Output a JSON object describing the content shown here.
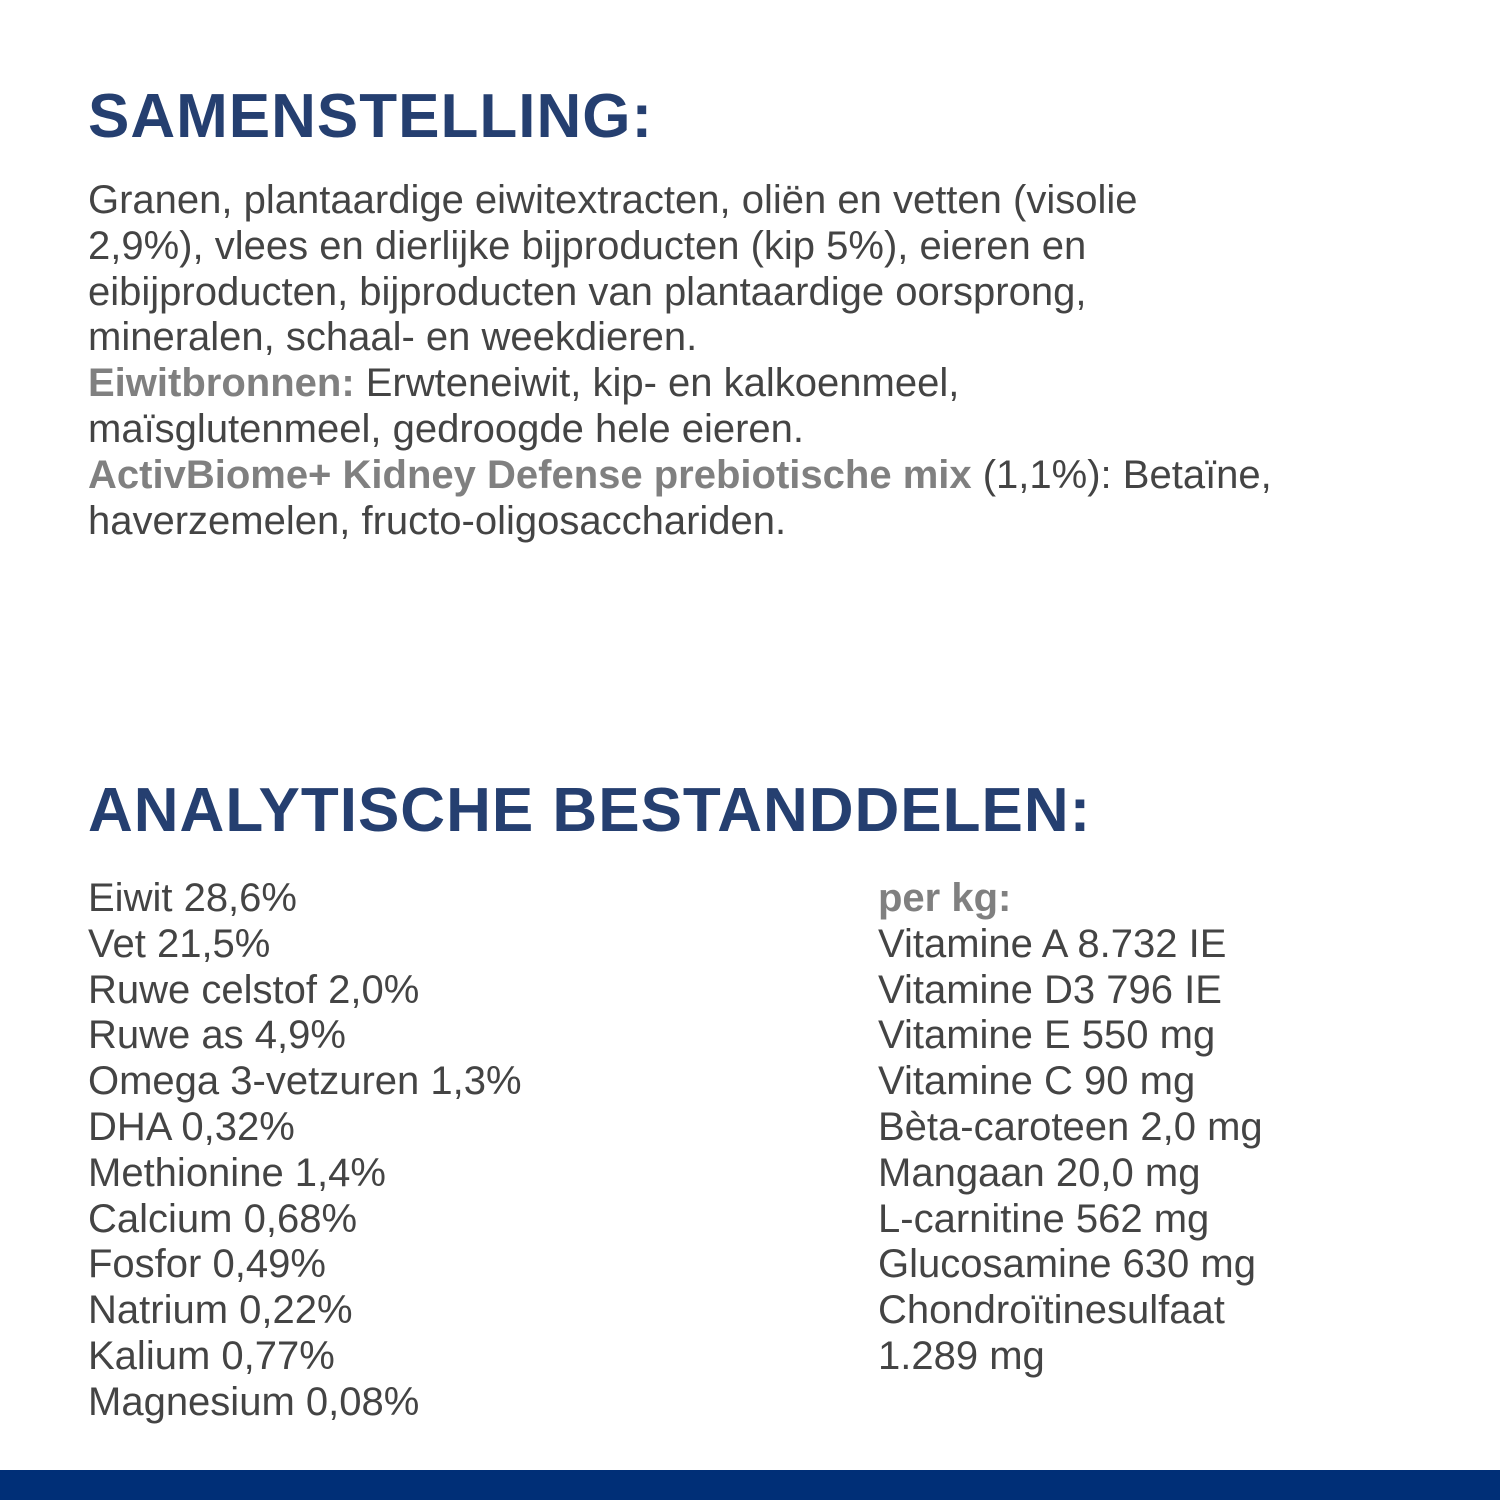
{
  "composition": {
    "heading": "SAMENSTELLING:",
    "lines": [
      "Granen, plantaardige eiwitextracten, oliën en vetten (visolie",
      "2,9%), vlees en dierlijke bijproducten (kip 5%), eieren en",
      "eibijproducten, bijproducten van plantaardige oorsprong,",
      "mineralen, schaal- en weekdieren."
    ],
    "protein_label": "Eiwitbronnen:",
    "protein_line1": " Erwteneiwit, kip- en kalkoenmeel,",
    "protein_line2": "maïsglutenmeel, gedroogde hele eieren.",
    "prebiotic_label": "ActivBiome+ Kidney Defense prebiotische mix",
    "prebiotic_line1": " (1,1%): Betaïne,",
    "prebiotic_line2": "haverzemelen, fructo-oligosacchariden."
  },
  "analytical": {
    "heading": "ANALYTISCHE BESTANDDELEN:",
    "left": [
      "Eiwit 28,6%",
      "Vet 21,5%",
      "Ruwe celstof 2,0%",
      "Ruwe as 4,9%",
      "Omega 3-vetzuren 1,3%",
      "DHA 0,32%",
      "Methionine 1,4%",
      "Calcium 0,68%",
      "Fosfor 0,49%",
      "Natrium 0,22%",
      "Kalium 0,77%",
      "Magnesium 0,08%"
    ],
    "right_label": "per kg:",
    "right": [
      "Vitamine A 8.732 IE",
      "Vitamine D3 796 IE",
      "Vitamine E 550 mg",
      "Vitamine C 90 mg",
      "Bèta-caroteen 2,0 mg",
      "Mangaan 20,0 mg",
      "L-carnitine 562 mg",
      "Glucosamine 630 mg",
      "Chondroïtinesulfaat",
      "1.289 mg"
    ]
  },
  "colors": {
    "heading": "#253f70",
    "text": "#444444",
    "label": "#808080",
    "footer_bar": "#002f77"
  }
}
